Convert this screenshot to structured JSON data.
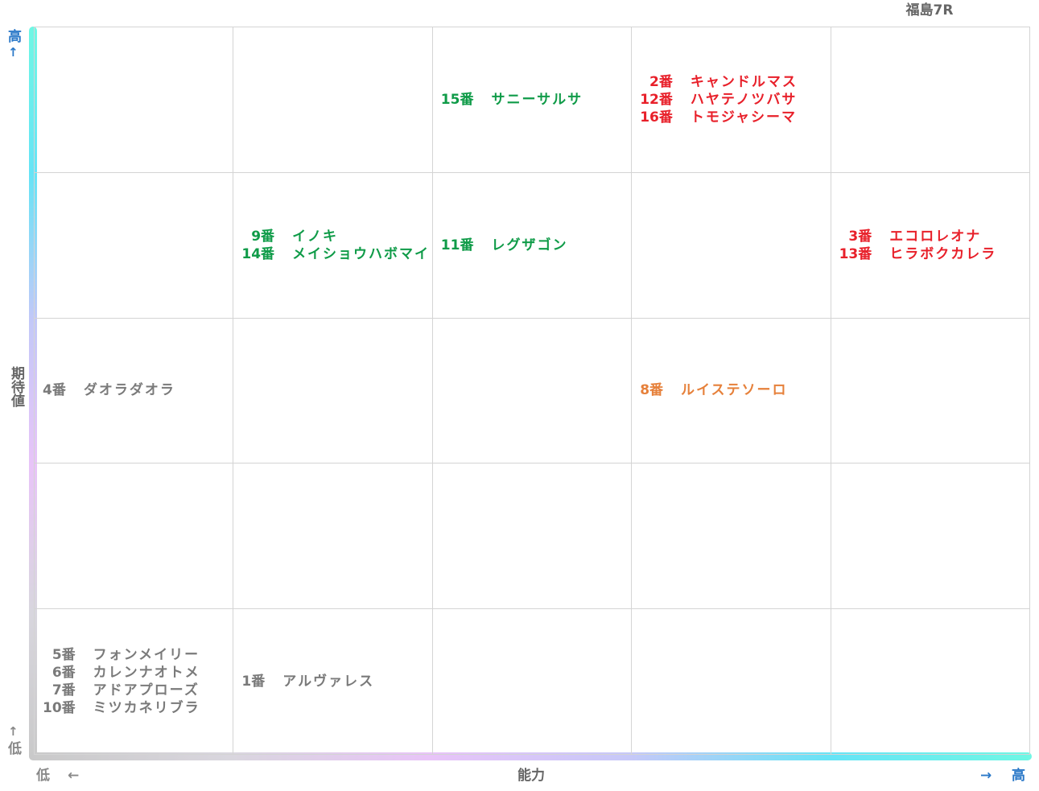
{
  "race": "福島7R",
  "axes": {
    "x": {
      "title": "能力",
      "low": "低",
      "high": "高",
      "low_arrow": "←",
      "high_arrow": "→"
    },
    "y": {
      "title": "期待値",
      "low": "低",
      "high": "高",
      "low_arrow": "↑",
      "high_arrow": "↑"
    }
  },
  "colors": {
    "gray": "#7a7a7a",
    "green": "#0f9b48",
    "red": "#e8202a",
    "orange": "#e6803a",
    "axis_high": "#2a78c8"
  },
  "chart_data": {
    "type": "table",
    "title": "福島7R",
    "xlabel": "能力",
    "ylabel": "期待値",
    "x_levels": 5,
    "y_levels": 5,
    "cells": [
      {
        "ability": 1,
        "expectation": 5,
        "color": "",
        "horses": []
      },
      {
        "ability": 2,
        "expectation": 5,
        "color": "",
        "horses": []
      },
      {
        "ability": 3,
        "expectation": 5,
        "color": "green",
        "horses": [
          {
            "num": "15番",
            "name": "サニーサルサ"
          }
        ]
      },
      {
        "ability": 4,
        "expectation": 5,
        "color": "red",
        "horses": [
          {
            "num": "2番",
            "name": "キャンドルマス"
          },
          {
            "num": "12番",
            "name": "ハヤテノツバサ"
          },
          {
            "num": "16番",
            "name": "トモジャシーマ"
          }
        ]
      },
      {
        "ability": 5,
        "expectation": 5,
        "color": "",
        "horses": []
      },
      {
        "ability": 1,
        "expectation": 4,
        "color": "",
        "horses": []
      },
      {
        "ability": 2,
        "expectation": 4,
        "color": "green",
        "horses": [
          {
            "num": "9番",
            "name": "イノキ"
          },
          {
            "num": "14番",
            "name": "メイショウハボマイ"
          }
        ]
      },
      {
        "ability": 3,
        "expectation": 4,
        "color": "green",
        "horses": [
          {
            "num": "11番",
            "name": "レグザゴン"
          }
        ]
      },
      {
        "ability": 4,
        "expectation": 4,
        "color": "",
        "horses": []
      },
      {
        "ability": 5,
        "expectation": 4,
        "color": "red",
        "horses": [
          {
            "num": "3番",
            "name": "エコロレオナ"
          },
          {
            "num": "13番",
            "name": "ヒラボクカレラ"
          }
        ]
      },
      {
        "ability": 1,
        "expectation": 3,
        "color": "gray",
        "horses": [
          {
            "num": "4番",
            "name": "ダオラダオラ"
          }
        ]
      },
      {
        "ability": 2,
        "expectation": 3,
        "color": "",
        "horses": []
      },
      {
        "ability": 3,
        "expectation": 3,
        "color": "",
        "horses": []
      },
      {
        "ability": 4,
        "expectation": 3,
        "color": "orange",
        "horses": [
          {
            "num": "8番",
            "name": "ルイステソーロ"
          }
        ]
      },
      {
        "ability": 5,
        "expectation": 3,
        "color": "",
        "horses": []
      },
      {
        "ability": 1,
        "expectation": 2,
        "color": "",
        "horses": []
      },
      {
        "ability": 2,
        "expectation": 2,
        "color": "",
        "horses": []
      },
      {
        "ability": 3,
        "expectation": 2,
        "color": "",
        "horses": []
      },
      {
        "ability": 4,
        "expectation": 2,
        "color": "",
        "horses": []
      },
      {
        "ability": 5,
        "expectation": 2,
        "color": "",
        "horses": []
      },
      {
        "ability": 1,
        "expectation": 1,
        "color": "gray",
        "horses": [
          {
            "num": "5番",
            "name": "フォンメイリー"
          },
          {
            "num": "6番",
            "name": "カレンナオトメ"
          },
          {
            "num": "7番",
            "name": "アドアプローズ"
          },
          {
            "num": "10番",
            "name": "ミツカネリブラ"
          }
        ]
      },
      {
        "ability": 2,
        "expectation": 1,
        "color": "gray",
        "horses": [
          {
            "num": "1番",
            "name": "アルヴァレス"
          }
        ]
      },
      {
        "ability": 3,
        "expectation": 1,
        "color": "",
        "horses": []
      },
      {
        "ability": 4,
        "expectation": 1,
        "color": "",
        "horses": []
      },
      {
        "ability": 5,
        "expectation": 1,
        "color": "",
        "horses": []
      }
    ]
  }
}
